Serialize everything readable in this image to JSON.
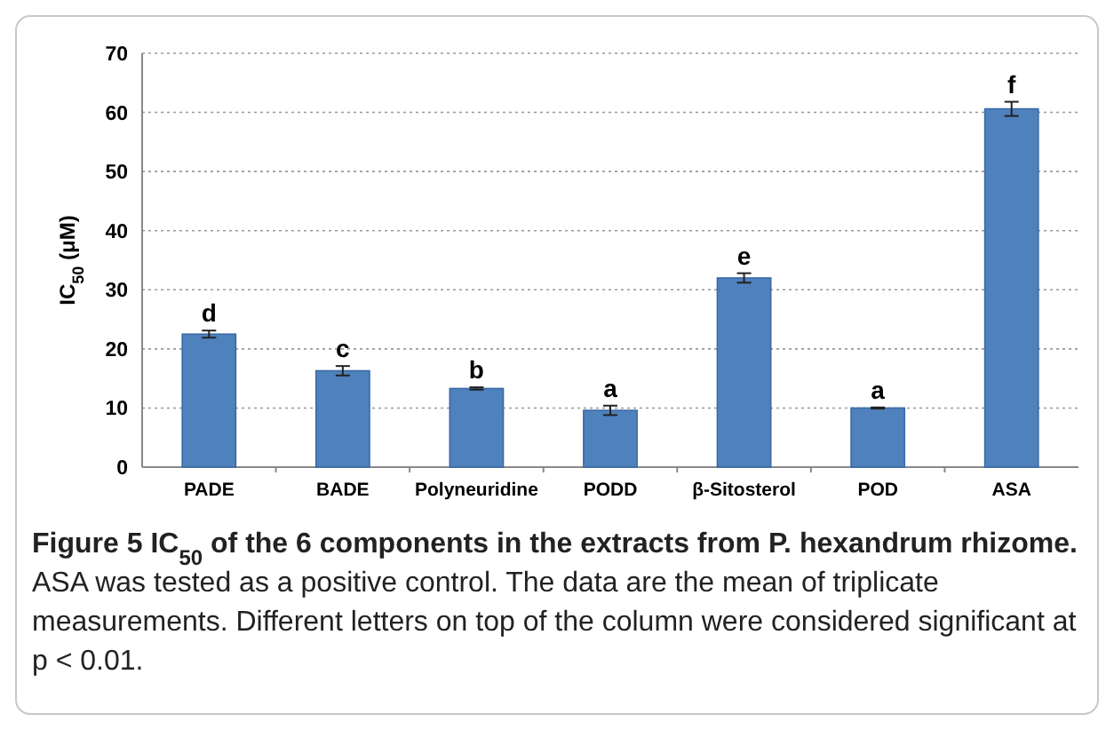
{
  "chart_data": {
    "type": "bar",
    "title": "Figure 5 IC$_{50}$ of the 6 components in the extracts from P. hexandrum rhizome.",
    "ylabel": "IC$_{50}$ (μM)",
    "categories": [
      "PADE",
      "BADE",
      "Polyneuridine",
      "PODD",
      "β-Sitosterol",
      "POD",
      "ASA"
    ],
    "values": [
      22.5,
      16.3,
      13.3,
      9.6,
      32.0,
      10.0,
      60.6
    ],
    "errors": [
      0.6,
      0.8,
      0.2,
      0.8,
      0.8,
      0.1,
      1.2
    ],
    "color": "#4f81bd",
    "ylim": [
      0,
      70
    ],
    "yticks": [
      0,
      10,
      20,
      30,
      40,
      50,
      60,
      70
    ],
    "grid": "y",
    "annotations": [
      {
        "text": "d",
        "x": "PADE",
        "y": 23.1
      },
      {
        "text": "c",
        "x": "BADE",
        "y": 17.1
      },
      {
        "text": "b",
        "x": "Polyneuridine",
        "y": 13.5
      },
      {
        "text": "a",
        "x": "PODD",
        "y": 10.4
      },
      {
        "text": "e",
        "x": "β-Sitosterol",
        "y": 32.8
      },
      {
        "text": "a",
        "x": "POD",
        "y": 10.1
      },
      {
        "text": "f",
        "x": "ASA",
        "y": 61.8
      },
      "ASA was tested as a positive control. The data are the mean of triplicate measurements. Different letters on top of the column were considered significant at p < 0.01."
    ]
  }
}
